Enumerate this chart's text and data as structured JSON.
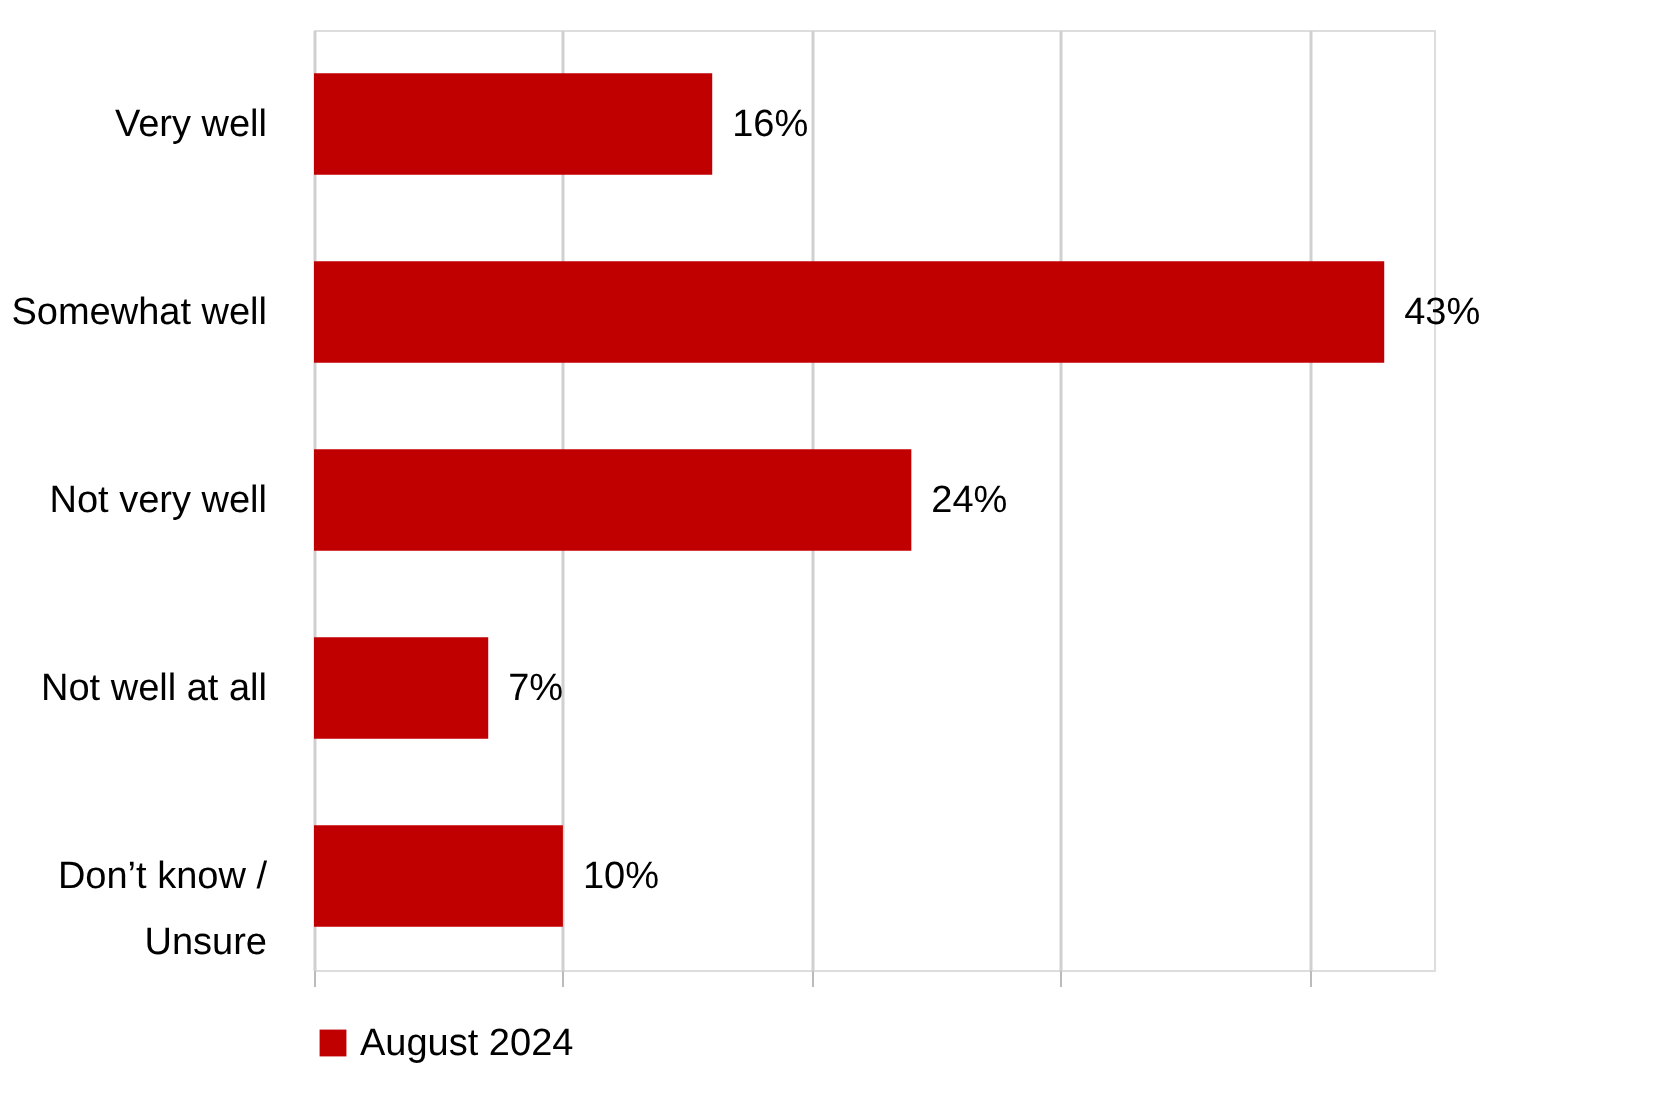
{
  "chart_data": {
    "type": "bar",
    "orientation": "horizontal",
    "categories": [
      "Very well",
      "Somewhat well",
      "Not very well",
      "Not well at all",
      "Don’t know / Unsure"
    ],
    "series": [
      {
        "name": "August 2024",
        "color": "#c00000",
        "values": [
          16,
          43,
          24,
          7,
          10
        ],
        "value_labels": [
          "16%",
          "43%",
          "24%",
          "7%",
          "10%"
        ]
      }
    ],
    "tick_labels": "y",
    "grid": "x",
    "legend": "bottom"
  }
}
